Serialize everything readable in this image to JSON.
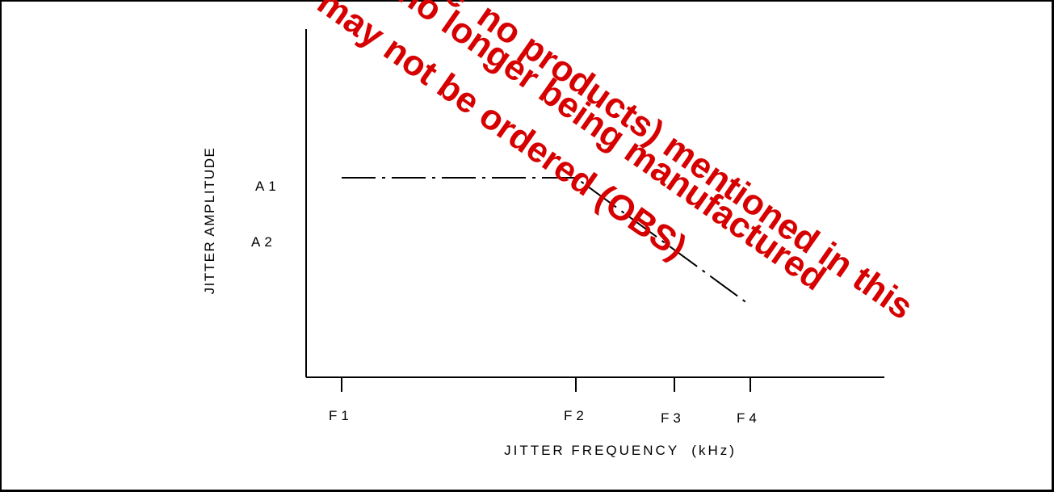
{
  "chart_data": {
    "type": "line",
    "title": "",
    "xlabel": "JITTER FREQUENCY  (kHz)",
    "ylabel": "JITTER AMPLITUDE",
    "x_tick_labels": [
      "F1",
      "F2",
      "F3",
      "F4"
    ],
    "y_tick_labels": [
      "A1",
      "A2"
    ],
    "series": [
      {
        "line_style": "dash-dot",
        "points": [
          {
            "x": "F1",
            "y": "A1"
          },
          {
            "x": "F2",
            "y": "A1"
          },
          {
            "x": "F4",
            "y": "below A2"
          }
        ]
      }
    ],
    "grid": false,
    "legend": "none"
  },
  "watermark": {
    "lines": [
      "Some  no products) mentioned in this",
      "may not be ordered (OBS)",
      "no longer being manufactured"
    ],
    "color": "#d70000"
  },
  "colors": {
    "axis": "#000000",
    "line": "#000000",
    "watermark": "#d70000",
    "background": "#ffffff"
  }
}
